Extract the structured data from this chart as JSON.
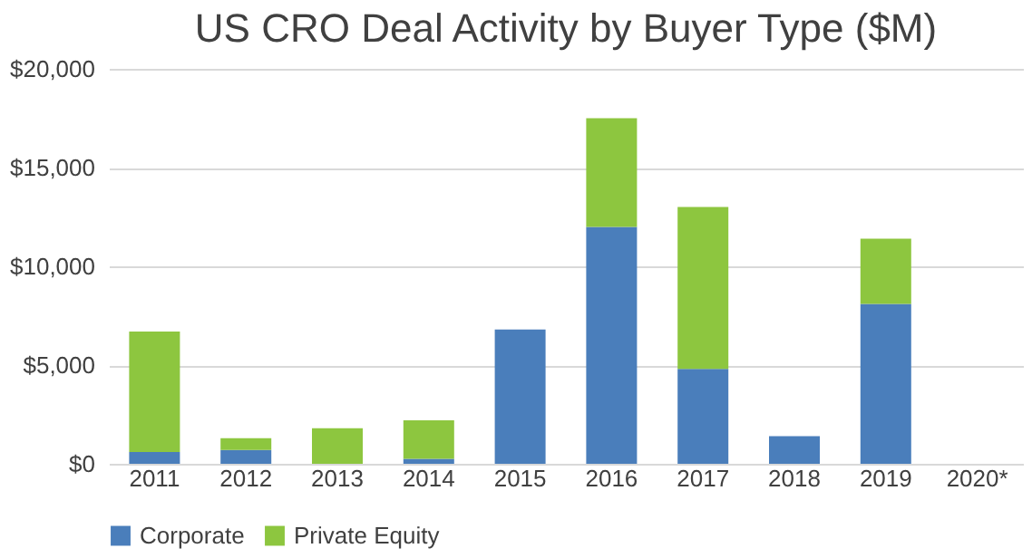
{
  "chart_data": {
    "type": "bar",
    "title": "US CRO Deal Activity by Buyer Type ($M)",
    "stacked": true,
    "categories": [
      "2011",
      "2012",
      "2013",
      "2014",
      "2015",
      "2016",
      "2017",
      "2018",
      "2019",
      "2020*"
    ],
    "series": [
      {
        "name": "Corporate",
        "color": "#4a7ebb",
        "values": [
          600,
          700,
          0,
          250,
          6800,
          12000,
          4800,
          1400,
          8100,
          0
        ]
      },
      {
        "name": "Private Equity",
        "color": "#8dc63f",
        "values": [
          6100,
          600,
          1800,
          1950,
          0,
          5500,
          8200,
          0,
          3300,
          0
        ]
      }
    ],
    "ylim": [
      0,
      20000
    ],
    "yticks": [
      {
        "value": 0,
        "label": "$0"
      },
      {
        "value": 5000,
        "label": "$5,000"
      },
      {
        "value": 10000,
        "label": "$10,000"
      },
      {
        "value": 15000,
        "label": "$15,000"
      },
      {
        "value": 20000,
        "label": "$20,000"
      }
    ],
    "grid": "y",
    "legend": "bottom"
  }
}
